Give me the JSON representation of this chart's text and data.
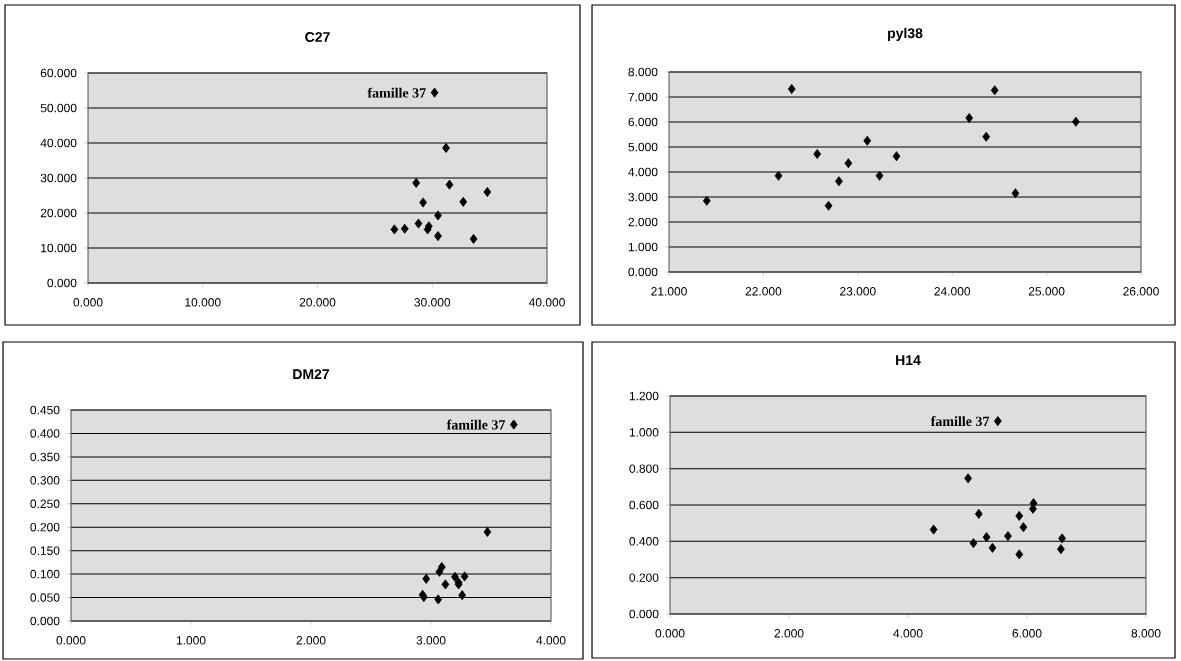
{
  "chart_data": [
    {
      "type": "scatter",
      "title": "C27",
      "color": "#000000",
      "marker": "diamond",
      "grid": "y",
      "x": [
        30.2,
        31.2,
        28.6,
        31.5,
        34.8,
        29.2,
        32.7,
        30.5,
        28.8,
        29.7,
        29.6,
        26.7,
        27.6,
        30.5,
        33.6
      ],
      "values": [
        54.4,
        38.6,
        28.6,
        28.1,
        26.0,
        23.0,
        23.2,
        19.3,
        17.0,
        16.2,
        15.3,
        15.3,
        15.5,
        13.4,
        12.6
      ],
      "xlim": [
        0,
        40
      ],
      "xticks": [
        {
          "value": 0,
          "label": "0.000"
        },
        {
          "value": 10,
          "label": "10.000"
        },
        {
          "value": 20,
          "label": "20.000"
        },
        {
          "value": 30,
          "label": "30.000"
        },
        {
          "value": 40,
          "label": "40.000"
        }
      ],
      "ylim": [
        0,
        60
      ],
      "yticks": [
        {
          "value": 0,
          "label": "0.000"
        },
        {
          "value": 10,
          "label": "10.000"
        },
        {
          "value": 20,
          "label": "20.000"
        },
        {
          "value": 30,
          "label": "30.000"
        },
        {
          "value": 40,
          "label": "40.000"
        },
        {
          "value": 50,
          "label": "50.000"
        },
        {
          "value": 60,
          "label": "60.000"
        }
      ],
      "annotations": [
        {
          "text": "famille 37",
          "x": 30.2,
          "y": 54.4
        }
      ]
    },
    {
      "type": "scatter",
      "title": "pyl38",
      "color": "#000000",
      "marker": "diamond",
      "grid": "y",
      "x": [
        21.4,
        22.3,
        24.45,
        24.18,
        25.31,
        24.36,
        23.1,
        22.57,
        23.41,
        22.9,
        22.16,
        23.23,
        22.8,
        24.67,
        22.69
      ],
      "values": [
        2.85,
        7.32,
        7.27,
        6.16,
        6.01,
        5.41,
        5.25,
        4.72,
        4.63,
        4.35,
        3.85,
        3.85,
        3.63,
        3.15,
        2.65
      ],
      "xlim": [
        21,
        26
      ],
      "xticks": [
        {
          "value": 21,
          "label": "21.000"
        },
        {
          "value": 22,
          "label": "22.000"
        },
        {
          "value": 23,
          "label": "23.000"
        },
        {
          "value": 24,
          "label": "24.000"
        },
        {
          "value": 25,
          "label": "25.000"
        },
        {
          "value": 26,
          "label": "26.000"
        }
      ],
      "ylim": [
        0,
        8
      ],
      "yticks": [
        {
          "value": 0,
          "label": "0.000"
        },
        {
          "value": 1,
          "label": "1.000"
        },
        {
          "value": 2,
          "label": "2.000"
        },
        {
          "value": 3,
          "label": "3.000"
        },
        {
          "value": 4,
          "label": "4.000"
        },
        {
          "value": 5,
          "label": "5.000"
        },
        {
          "value": 6,
          "label": "6.000"
        },
        {
          "value": 7,
          "label": "7.000"
        },
        {
          "value": 8,
          "label": "8.000"
        }
      ]
    },
    {
      "type": "scatter",
      "title": "DM27",
      "color": "#000000",
      "marker": "diamond",
      "grid": "y",
      "x": [
        3.69,
        3.47,
        3.09,
        3.07,
        2.96,
        3.2,
        3.28,
        3.12,
        3.23,
        2.93,
        2.94,
        3.06,
        3.26,
        3.23
      ],
      "values": [
        0.419,
        0.19,
        0.115,
        0.105,
        0.09,
        0.094,
        0.095,
        0.078,
        0.078,
        0.056,
        0.051,
        0.046,
        0.055,
        0.082
      ],
      "xlim": [
        0,
        4
      ],
      "xticks": [
        {
          "value": 0,
          "label": "0.000"
        },
        {
          "value": 1,
          "label": "1.000"
        },
        {
          "value": 2,
          "label": "2.000"
        },
        {
          "value": 3,
          "label": "3.000"
        },
        {
          "value": 4,
          "label": "4.000"
        }
      ],
      "ylim": [
        0,
        0.45
      ],
      "yticks": [
        {
          "value": 0,
          "label": "0.000"
        },
        {
          "value": 0.05,
          "label": "0.050"
        },
        {
          "value": 0.1,
          "label": "0.100"
        },
        {
          "value": 0.15,
          "label": "0.150"
        },
        {
          "value": 0.2,
          "label": "0.200"
        },
        {
          "value": 0.25,
          "label": "0.250"
        },
        {
          "value": 0.3,
          "label": "0.300"
        },
        {
          "value": 0.35,
          "label": "0.350"
        },
        {
          "value": 0.4,
          "label": "0.400"
        },
        {
          "value": 0.45,
          "label": "0.450"
        }
      ],
      "annotations": [
        {
          "text": "famille 37",
          "x": 3.69,
          "y": 0.419
        }
      ]
    },
    {
      "type": "scatter",
      "title": "H14",
      "color": "#000000",
      "marker": "diamond",
      "grid": "y",
      "x": [
        5.51,
        5.01,
        5.19,
        4.43,
        6.11,
        6.1,
        5.87,
        5.94,
        5.32,
        5.68,
        5.1,
        5.42,
        5.87,
        6.59,
        6.57
      ],
      "values": [
        1.062,
        0.747,
        0.551,
        0.465,
        0.61,
        0.579,
        0.54,
        0.478,
        0.423,
        0.429,
        0.39,
        0.364,
        0.328,
        0.416,
        0.357
      ],
      "xlim": [
        0,
        8
      ],
      "xticks": [
        {
          "value": 0,
          "label": "0.000"
        },
        {
          "value": 2,
          "label": "2.000"
        },
        {
          "value": 4,
          "label": "4.000"
        },
        {
          "value": 6,
          "label": "6.000"
        },
        {
          "value": 8,
          "label": "8.000"
        }
      ],
      "ylim": [
        0,
        1.2
      ],
      "yticks": [
        {
          "value": 0,
          "label": "0.000"
        },
        {
          "value": 0.2,
          "label": "0.200"
        },
        {
          "value": 0.4,
          "label": "0.400"
        },
        {
          "value": 0.6,
          "label": "0.600"
        },
        {
          "value": 0.8,
          "label": "0.800"
        },
        {
          "value": 1,
          "label": "1.000"
        },
        {
          "value": 1.2,
          "label": "1.200"
        }
      ],
      "annotations": [
        {
          "text": "famille 37",
          "x": 5.51,
          "y": 1.062
        }
      ]
    }
  ]
}
